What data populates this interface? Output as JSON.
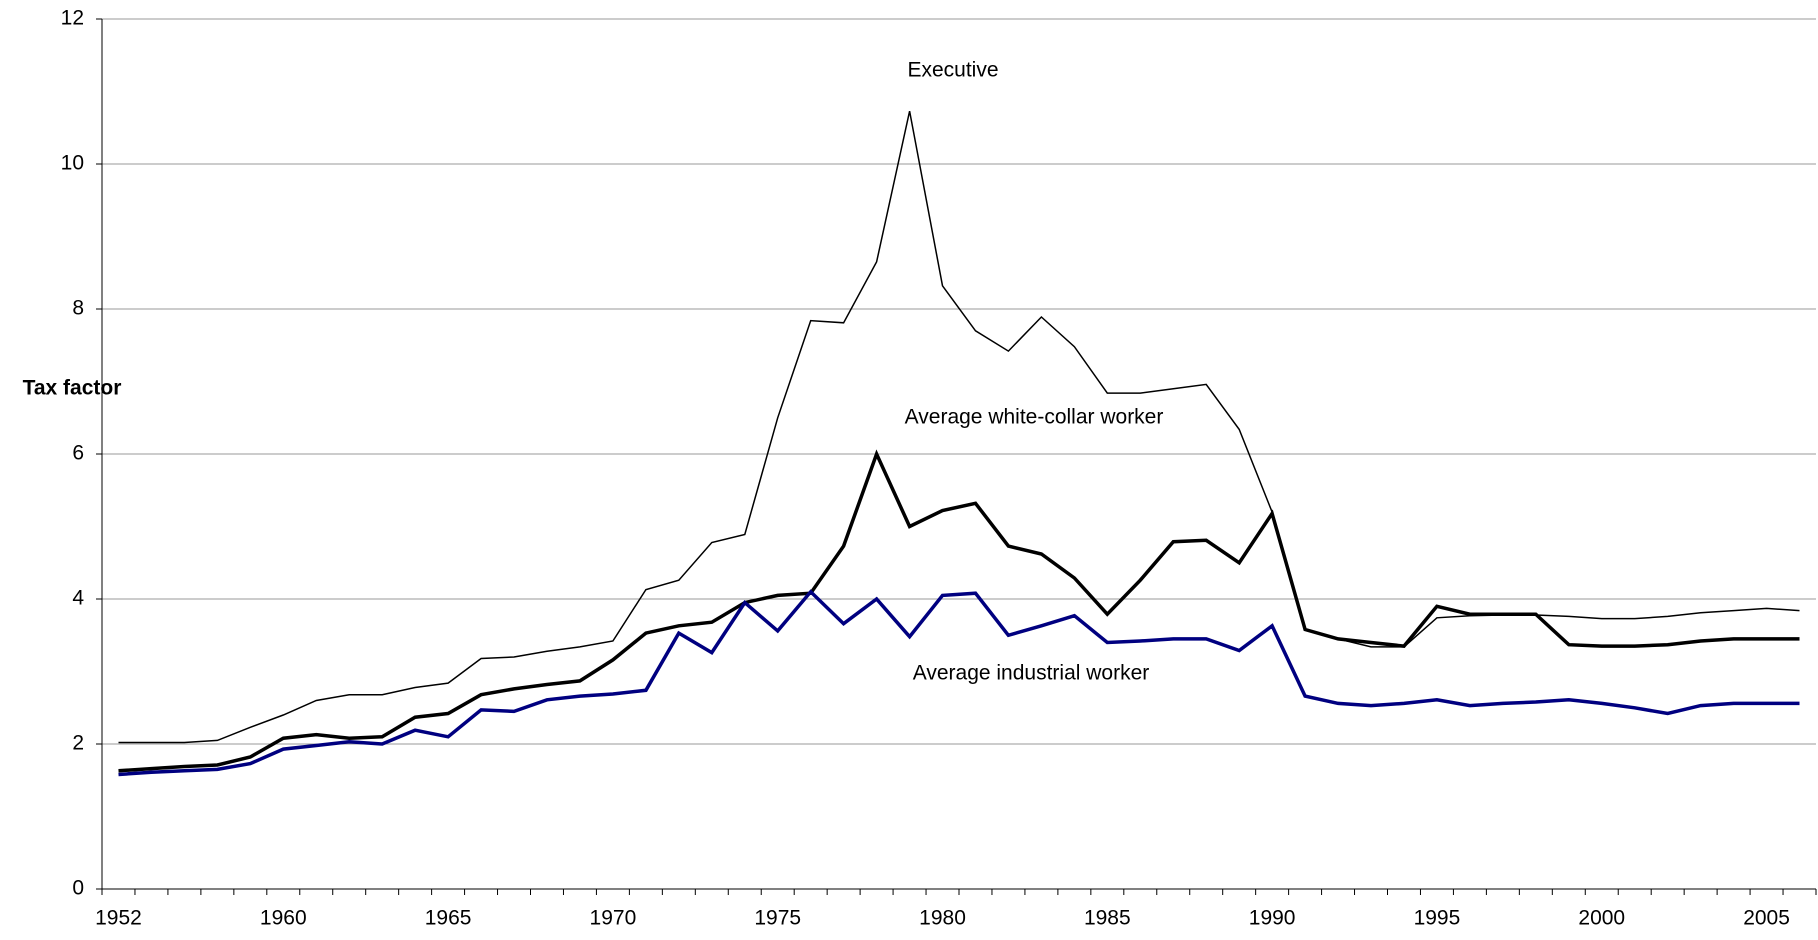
{
  "chart_data": {
    "type": "line",
    "y_label": "Tax factor",
    "annotations": [
      "Executive",
      "Average white-collar worker",
      "Average industrial worker"
    ],
    "categories": [
      "1952",
      null,
      null,
      null,
      null,
      "1960",
      null,
      null,
      null,
      null,
      "1965",
      null,
      null,
      null,
      null,
      "1970",
      null,
      null,
      null,
      null,
      "1975",
      null,
      null,
      null,
      null,
      "1980",
      null,
      null,
      null,
      null,
      "1985",
      null,
      null,
      null,
      null,
      "1990",
      null,
      null,
      null,
      null,
      "1995",
      null,
      null,
      null,
      null,
      "2000",
      null,
      null,
      null,
      null,
      "2005",
      null
    ],
    "series": [
      {
        "name": "Executive",
        "color": "#000000",
        "values": [
          2.02,
          2.02,
          2.02,
          2.05,
          2.23,
          2.4,
          2.6,
          2.68,
          2.68,
          2.78,
          2.84,
          3.18,
          3.2,
          3.28,
          3.34,
          3.42,
          4.13,
          4.26,
          4.78,
          4.89,
          6.5,
          7.84,
          7.81,
          8.65,
          10.73,
          8.32,
          7.7,
          7.42,
          7.89,
          7.48,
          6.84,
          6.84,
          6.9,
          6.96,
          6.34,
          5.2,
          3.58,
          3.45,
          3.34,
          3.34,
          3.74,
          3.77,
          3.78,
          3.78,
          3.76,
          3.73,
          3.73,
          3.76,
          3.81,
          3.84,
          3.87,
          3.84
        ]
      },
      {
        "name": "Average white-collar worker",
        "color": "#000000",
        "values": [
          1.63,
          1.66,
          1.69,
          1.71,
          1.82,
          2.08,
          2.13,
          2.08,
          2.1,
          2.37,
          2.42,
          2.68,
          2.76,
          2.82,
          2.87,
          3.16,
          3.53,
          3.63,
          3.68,
          3.95,
          4.05,
          4.08,
          4.73,
          6.0,
          5.0,
          5.22,
          5.32,
          4.73,
          4.62,
          4.29,
          3.79,
          4.26,
          4.79,
          4.81,
          4.5,
          5.18,
          3.58,
          3.45,
          3.4,
          3.35,
          3.9,
          3.79,
          3.79,
          3.79,
          3.37,
          3.35,
          3.35,
          3.37,
          3.42,
          3.45,
          3.45,
          3.45
        ]
      },
      {
        "name": "Average industrial worker",
        "color": "#000080",
        "values": [
          1.58,
          1.61,
          1.63,
          1.65,
          1.73,
          1.93,
          1.98,
          2.03,
          2.0,
          2.19,
          2.1,
          2.47,
          2.45,
          2.61,
          2.66,
          2.69,
          2.74,
          3.53,
          3.26,
          3.95,
          3.56,
          4.1,
          3.66,
          4.0,
          3.48,
          4.05,
          4.08,
          3.5,
          3.63,
          3.77,
          3.4,
          3.42,
          3.45,
          3.45,
          3.29,
          3.63,
          2.66,
          2.56,
          2.53,
          2.56,
          2.61,
          2.53,
          2.56,
          2.58,
          2.61,
          2.56,
          2.5,
          2.42,
          2.53,
          2.56,
          2.56,
          2.56
        ]
      }
    ],
    "ylim": [
      0,
      12
    ],
    "yticks": [
      0,
      2,
      4,
      6,
      8,
      10,
      12
    ],
    "grid": true
  }
}
